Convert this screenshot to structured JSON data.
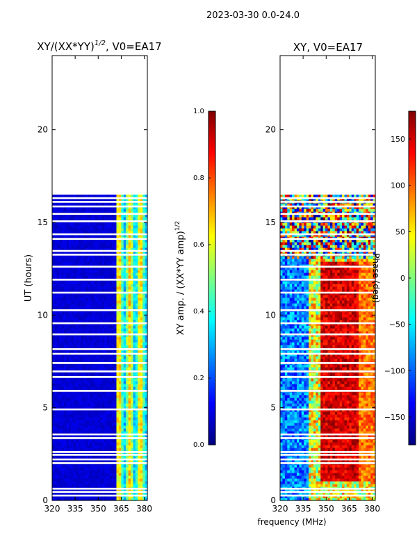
{
  "suptitle": "2023-03-30 0.0-24.0",
  "colors": {
    "jet": [
      "#00007f",
      "#0000ff",
      "#007fff",
      "#00ffff",
      "#7fff7f",
      "#ffff00",
      "#ff7f00",
      "#ff0000",
      "#7f0000"
    ],
    "gap": "#ffffff",
    "axis": "#000000"
  },
  "chart_data": [
    {
      "type": "heatmap",
      "title": "XY/(XX*YY)",
      "title_exponent": "1/2",
      "title_suffix": ", V0=EA17",
      "xlabel": "",
      "ylabel": "UT (hours)",
      "xlim": [
        320,
        382
      ],
      "ylim": [
        0,
        24
      ],
      "xticks": [
        320,
        335,
        350,
        365,
        380
      ],
      "yticks": [
        0,
        5,
        10,
        15,
        20
      ],
      "data_extent_hours": [
        0,
        16.5
      ],
      "colorbar": {
        "label": "XY amp. / (XX*YY amp)",
        "label_exponent": "1/2",
        "range": [
          0.0,
          1.0
        ],
        "ticks": [
          "0.0",
          "0.2",
          "0.4",
          "0.6",
          "0.8",
          "1.0"
        ]
      },
      "description_values": "low amplitude (~0.05) across 320-360 MHz; bright bands ~0.35-0.65 at 361-382 MHz; data from 0 to 16.5 UT with flagged gaps"
    },
    {
      "type": "heatmap",
      "title": "XY, V0=EA17",
      "xlabel": "frequency (MHz)",
      "ylabel": "",
      "xlim": [
        320,
        382
      ],
      "ylim": [
        0,
        24
      ],
      "xticks": [
        320,
        335,
        350,
        365,
        380
      ],
      "yticks": [
        0,
        5,
        10,
        15,
        20
      ],
      "data_extent_hours": [
        0,
        16.5
      ],
      "colorbar": {
        "label": "Phase (deg)",
        "range": [
          -180,
          180
        ],
        "ticks": [
          "150",
          "100",
          "50",
          "0",
          "−50",
          "−100",
          "−150"
        ],
        "tick_values": [
          150,
          100,
          50,
          0,
          -50,
          -100,
          -150
        ]
      },
      "description_values": "phase mostly blue (~-140 deg) at low freq early hours, red (~150 deg) band 340-380 MHz between 1 and 13 UT, mixed noise above 13 UT"
    }
  ],
  "gap_hours": [
    0.25,
    0.45,
    0.62,
    2.0,
    2.2,
    2.45,
    2.6,
    3.35,
    3.55,
    4.9,
    5.9,
    6.65,
    6.95,
    7.4,
    7.9,
    8.15,
    8.95,
    9.55,
    10.25,
    11.2,
    11.9,
    12.6,
    13.25,
    13.45,
    14.1,
    14.35,
    15.05,
    15.45,
    15.85,
    16.1,
    16.3
  ]
}
